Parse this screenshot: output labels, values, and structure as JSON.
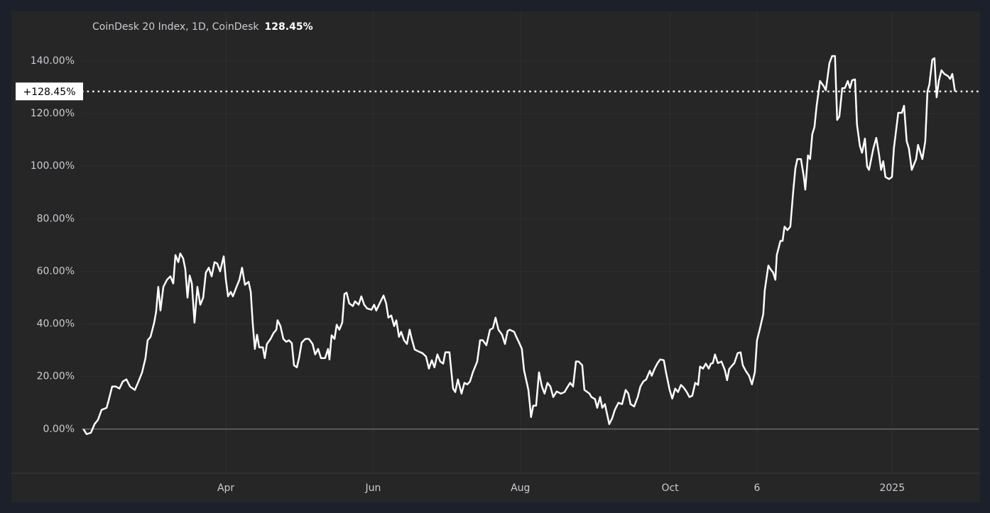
{
  "chart_data": {
    "type": "line",
    "title": "CoinDesk 20 Index, 1D, CoinDesk",
    "last_value_label": "128.45%",
    "price_label": "+128.45%",
    "color": "#ffffff",
    "grid": true,
    "x": [
      0.0,
      1.3,
      3.1,
      4.6,
      6.0,
      7.5,
      9.6,
      10.4,
      11.9,
      13.4,
      14.9,
      16.3,
      17.8,
      19.3,
      21.3,
      22.8,
      24.3,
      25.7,
      26.6,
      27.8,
      29.3,
      30.1,
      31.0,
      31.9,
      33.1,
      34.6,
      36.0,
      37.2,
      38.1,
      39.3,
      40.1,
      41.3,
      42.2,
      43.1,
      44.0,
      44.9,
      46.0,
      47.2,
      48.4,
      49.6,
      50.7,
      51.9,
      53.1,
      54.3,
      55.4,
      56.6,
      58.1,
      59.0,
      59.9,
      61.0,
      61.9,
      63.4,
      64.6,
      65.7,
      66.9,
      68.4,
      69.3,
      70.1,
      71.0,
      71.9,
      72.8,
      74.3,
      75.1,
      76.0,
      77.5,
      78.7,
      79.9,
      80.4,
      81.6,
      82.8,
      84.0,
      85.1,
      86.3,
      87.2,
      88.4,
      89.3,
      90.4,
      91.9,
      93.4,
      94.9,
      96.0,
      97.2,
      98.4,
      100.1,
      101.3,
      101.9,
      102.8,
      104.0,
      104.9,
      106.0,
      107.2,
      108.1,
      109.0,
      110.1,
      111.6,
      112.5,
      114.0,
      115.1,
      116.3,
      117.5,
      119.3,
      120.4,
      121.3,
      123.1,
      124.3,
      125.4,
      126.3,
      127.5,
      128.7,
      129.6,
      130.7,
      131.6,
      132.8,
      134.0,
      135.1,
      136.0,
      137.2,
      138.4,
      140.4,
      141.9,
      143.1,
      144.3,
      145.4,
      146.6,
      147.8,
      149.0,
      149.9,
      151.6,
      153.1,
      154.0,
      155.1,
      156.6,
      157.8,
      159.0,
      160.1,
      161.3,
      163.1,
      164.3,
      165.4,
      166.9,
      168.4,
      169.6,
      170.7,
      171.9,
      173.4,
      174.6,
      175.7,
      176.6,
      178.4,
      179.3,
      180.7,
      181.6,
      182.5,
      184.3,
      184.9,
      185.4,
      186.3,
      187.5,
      188.7,
      189.9,
      191.0,
      192.2,
      193.4,
      194.6,
      196.0,
      197.8,
      199.3,
      200.1,
      201.6,
      202.8,
      204.0,
      205.1,
      206.6,
      207.5,
      209.6,
      210.4,
      211.9,
      212.8,
      214.0,
      214.9,
      216.0,
      217.8,
      219.0,
      220.1,
      221.6,
      223.1,
      224.6,
      225.7,
      226.6,
      228.1,
      229.6,
      230.7,
      231.9,
      233.1,
      234.6,
      235.4,
      236.6,
      237.8,
      238.9,
      240.4,
      241.3,
      242.8,
      243.9,
      245.1,
      246.3,
      247.5,
      248.7,
      249.9,
      251.0,
      252.2,
      253.4,
      254.6,
      255.4,
      256.6,
      257.8,
      259.0,
      259.9,
      260.7,
      261.6,
      262.8,
      264.3,
      265.7,
      266.6,
      267.5,
      269.6,
      271.0,
      272.2,
      273.1,
      274.3,
      275.7,
      276.9,
      278.1,
      279.0,
      280.1,
      281.6,
      282.2,
      283.7,
      284.6,
      285.7,
      286.6,
      287.2,
      288.7,
      289.6,
      290.4,
      291.6,
      292.8,
      294.0,
      294.9,
      295.7,
      297.2,
      298.4,
      299.0,
      300.1,
      301.0,
      301.9,
      302.8,
      303.7,
      305.1,
      306.6,
      307.5,
      309.0,
      310.1,
      311.3,
      312.2,
      313.1,
      314.3,
      315.4,
      316.6,
      317.5,
      318.4,
      319.6,
      320.4,
      321.6,
      322.5,
      323.7,
      324.6,
      325.4,
      327.2,
      328.4,
      329.6,
      330.4,
      331.3,
      332.2,
      333.7,
      334.9,
      335.7,
      337.5,
      339.0,
      339.9,
      341.0,
      341.9,
      343.1,
      344.9,
      345.7,
      347.5,
      348.7,
      349.6,
      350.4,
      351.6,
      352.5,
      353.4,
      354.3,
      355.4,
      356.6,
      358.1,
      359.0,
      359.9,
      361.0
    ],
    "values": [
      0.0,
      -1.9,
      -1.4,
      1.9,
      3.5,
      7.3,
      8.1,
      10.8,
      16.2,
      16.2,
      15.4,
      18.1,
      18.9,
      16.2,
      14.9,
      18.1,
      21.6,
      27.0,
      33.8,
      35.1,
      40.5,
      44.6,
      54.1,
      45.1,
      54.1,
      56.8,
      58.1,
      55.4,
      66.2,
      63.5,
      66.8,
      64.9,
      60.8,
      50.0,
      58.4,
      55.4,
      40.5,
      54.1,
      47.3,
      50.0,
      59.5,
      61.4,
      58.1,
      63.5,
      63.0,
      60.0,
      65.7,
      56.8,
      50.5,
      52.2,
      50.5,
      54.1,
      56.8,
      61.4,
      54.9,
      56.0,
      52.2,
      40.5,
      30.5,
      35.9,
      31.1,
      31.1,
      27.0,
      32.4,
      34.3,
      36.5,
      37.8,
      41.4,
      39.2,
      34.3,
      33.2,
      33.8,
      32.7,
      24.3,
      23.5,
      27.0,
      32.9,
      34.3,
      34.3,
      32.4,
      28.4,
      30.5,
      27.0,
      27.0,
      30.5,
      26.5,
      35.7,
      34.3,
      39.7,
      37.8,
      40.5,
      51.4,
      51.9,
      47.8,
      46.8,
      48.6,
      47.3,
      50.5,
      47.3,
      45.9,
      45.4,
      47.3,
      45.1,
      48.6,
      50.8,
      47.8,
      42.4,
      43.2,
      39.2,
      41.4,
      35.1,
      37.0,
      33.8,
      32.4,
      37.8,
      34.3,
      30.3,
      29.7,
      28.9,
      27.6,
      23.0,
      26.2,
      23.5,
      28.4,
      25.7,
      24.9,
      29.2,
      29.2,
      15.4,
      14.1,
      18.9,
      13.5,
      17.6,
      17.0,
      18.1,
      21.6,
      25.7,
      33.8,
      33.8,
      31.9,
      37.8,
      38.4,
      42.4,
      37.8,
      35.9,
      32.4,
      37.3,
      37.8,
      37.0,
      35.1,
      32.4,
      30.5,
      22.4,
      14.9,
      9.5,
      4.6,
      8.9,
      8.9,
      21.6,
      16.2,
      13.5,
      17.6,
      16.2,
      12.2,
      14.3,
      13.5,
      14.1,
      15.4,
      17.6,
      16.2,
      25.7,
      25.7,
      24.3,
      14.9,
      13.5,
      12.2,
      11.4,
      8.1,
      12.2,
      8.1,
      9.5,
      1.9,
      4.1,
      7.3,
      10.0,
      9.5,
      14.9,
      13.5,
      9.5,
      8.6,
      12.2,
      16.2,
      18.1,
      18.9,
      22.2,
      20.3,
      23.0,
      25.1,
      26.5,
      26.2,
      21.6,
      14.9,
      11.6,
      15.4,
      14.1,
      16.8,
      15.7,
      14.1,
      12.2,
      12.7,
      17.6,
      16.8,
      23.8,
      23.0,
      24.9,
      23.0,
      24.9,
      25.1,
      28.4,
      25.1,
      25.7,
      22.4,
      18.6,
      22.9,
      25.1,
      28.9,
      29.2,
      24.3,
      22.2,
      20.3,
      17.0,
      21.6,
      33.8,
      37.8,
      43.8,
      52.7,
      62.2,
      60.8,
      59.5,
      56.8,
      66.2,
      71.6,
      71.6,
      77.0,
      75.7,
      77.0,
      90.5,
      99.2,
      102.7,
      102.7,
      95.9,
      91.1,
      104.1,
      102.7,
      112.2,
      114.9,
      123.0,
      132.4,
      130.5,
      128.9,
      139.2,
      141.9,
      141.9,
      117.6,
      118.9,
      129.7,
      129.7,
      132.4,
      129.7,
      132.7,
      133.0,
      115.9,
      107.8,
      105.1,
      110.5,
      99.9,
      98.6,
      106.8,
      110.8,
      104.1,
      98.6,
      101.9,
      95.9,
      95.1,
      95.9,
      106.8,
      120.3,
      120.3,
      123.0,
      109.5,
      106.8,
      98.6,
      102.7,
      108.1,
      102.7,
      109.5,
      128.4,
      131.1,
      140.5,
      141.1,
      126.2,
      132.4,
      136.5,
      135.1,
      134.3,
      133.2,
      135.1,
      128.45
    ],
    "xlim": [
      -0.7,
      370.8
    ],
    "ylim": [
      -16.8,
      158.9
    ],
    "xticks": [
      {
        "value": 59,
        "label": "Apr"
      },
      {
        "value": 120,
        "label": "Jun"
      },
      {
        "value": 181,
        "label": "Aug"
      },
      {
        "value": 243,
        "label": "Oct"
      },
      {
        "value": 279,
        "label": "6"
      },
      {
        "value": 335,
        "label": "2025"
      }
    ],
    "yticks": [
      {
        "value": 0,
        "label": "0.00%"
      },
      {
        "value": 20,
        "label": "20.00%"
      },
      {
        "value": 40,
        "label": "40.00%"
      },
      {
        "value": 60,
        "label": "60.00%"
      },
      {
        "value": 80,
        "label": "80.00%"
      },
      {
        "value": 100,
        "label": "100.00%"
      },
      {
        "value": 120,
        "label": "120.00%"
      },
      {
        "value": 140,
        "label": "140.00%"
      }
    ]
  }
}
